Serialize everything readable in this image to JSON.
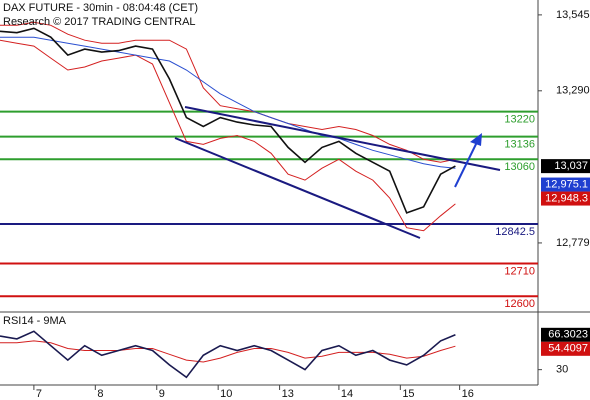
{
  "chart_data": [
    {
      "type": "line",
      "title": "DAX FUTURE - 30min - 08:04:48 (CET)",
      "subtitle": "Research © 2017 TRADING CENTRAL",
      "x": [
        0,
        8,
        16,
        24,
        32,
        40,
        48,
        56,
        64,
        72,
        80,
        88,
        96,
        104,
        112,
        120,
        128,
        136,
        144,
        152,
        160,
        168,
        176,
        184,
        192,
        200,
        208,
        215
      ],
      "xlim": [
        0,
        254
      ],
      "series": [
        {
          "color": "#d42020",
          "values": [
            13510,
            13510,
            13520,
            13510,
            13480,
            13460,
            13450,
            13450,
            13460,
            13460,
            13460,
            13430,
            13300,
            13240,
            13230,
            13220,
            13200,
            13180,
            13170,
            13160,
            13170,
            13160,
            13140,
            13110,
            13090,
            13060,
            13050,
            13060
          ]
        },
        {
          "color": "#d42020",
          "values": [
            13460,
            13450,
            13440,
            13400,
            13360,
            13370,
            13390,
            13400,
            13410,
            13380,
            13250,
            13120,
            13110,
            13130,
            13140,
            13120,
            13080,
            13010,
            12990,
            13030,
            13060,
            13020,
            12990,
            12930,
            12830,
            12820,
            12870,
            12910
          ]
        },
        {
          "color": "#2a4fd0",
          "values": [
            13470,
            13470,
            13470,
            13460,
            13450,
            13440,
            13430,
            13420,
            13410,
            13400,
            13390,
            13360,
            13320,
            13280,
            13250,
            13220,
            13200,
            13180,
            13160,
            13140,
            13130,
            13110,
            13090,
            13075,
            13060,
            13045,
            13035,
            13030
          ]
        },
        {
          "color": "#111111",
          "values": [
            13490,
            13485,
            13500,
            13470,
            13410,
            13430,
            13420,
            13425,
            13440,
            13430,
            13330,
            13200,
            13170,
            13200,
            13185,
            13175,
            13170,
            13100,
            13050,
            13100,
            13120,
            13080,
            13050,
            13020,
            12880,
            12900,
            13010,
            13037
          ]
        }
      ],
      "ylim": [
        12547,
        13595
      ],
      "yticks": [
        {
          "value": 13545,
          "label": "13,545"
        },
        {
          "value": 13290,
          "label": "13,290"
        },
        {
          "value": 12779,
          "label": "12,779"
        }
      ],
      "levels": [
        {
          "value": 13220,
          "color": "#2e9e2e"
        },
        {
          "value": 13136,
          "color": "#2e9e2e"
        },
        {
          "value": 13060,
          "color": "#2e9e2e"
        },
        {
          "value": 12842.5,
          "color": "#1a1a80"
        },
        {
          "value": 12710,
          "color": "#d01010"
        },
        {
          "value": 12600,
          "color": "#d01010"
        }
      ],
      "price_tags": [
        {
          "value": 13037,
          "label": "13,037",
          "color": "#000000"
        },
        {
          "value": 12975.1,
          "label": "12,975.1",
          "color": "#1f3fd0"
        },
        {
          "value": 12948.3,
          "label": "12,948.3",
          "color": "#d01010"
        }
      ]
    },
    {
      "type": "line",
      "title": "RSI14 - 9MA",
      "x": [
        0,
        8,
        16,
        24,
        32,
        40,
        48,
        56,
        64,
        72,
        80,
        88,
        96,
        104,
        112,
        120,
        128,
        136,
        144,
        152,
        160,
        168,
        176,
        184,
        192,
        200,
        208,
        215
      ],
      "xlim": [
        0,
        254
      ],
      "xticks": [
        {
          "value": 16,
          "label": "7"
        },
        {
          "value": 45,
          "label": "8"
        },
        {
          "value": 74,
          "label": "9"
        },
        {
          "value": 103,
          "label": "10"
        },
        {
          "value": 132,
          "label": "13"
        },
        {
          "value": 160,
          "label": "14"
        },
        {
          "value": 189,
          "label": "15"
        },
        {
          "value": 217,
          "label": "16"
        }
      ],
      "series": [
        {
          "color": "#d42020",
          "values": [
            58,
            58,
            60,
            58,
            52,
            50,
            50,
            50,
            52,
            52,
            46,
            40,
            38,
            42,
            48,
            52,
            52,
            48,
            42,
            44,
            48,
            48,
            48,
            46,
            42,
            44,
            50,
            54.4
          ]
        },
        {
          "color": "#1a1a50",
          "values": [
            65,
            62,
            70,
            55,
            40,
            55,
            45,
            50,
            55,
            50,
            35,
            22,
            45,
            55,
            50,
            55,
            50,
            40,
            30,
            50,
            55,
            45,
            50,
            40,
            35,
            45,
            60,
            66.3
          ]
        }
      ],
      "ylim": [
        14,
        88
      ],
      "yticks": [
        30
      ],
      "value_tags": [
        {
          "value": 66.3023,
          "color": "#000000"
        },
        {
          "value": 54.4097,
          "color": "#d01010"
        }
      ]
    }
  ]
}
